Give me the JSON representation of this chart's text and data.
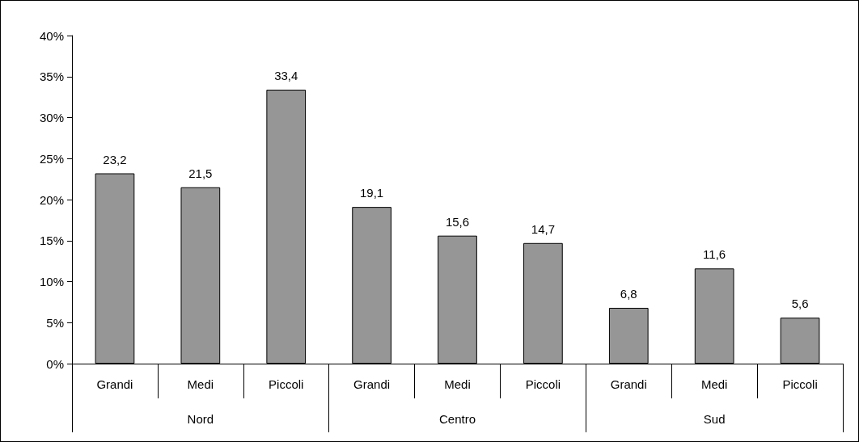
{
  "chart_data": {
    "type": "bar",
    "categories": [
      "Grandi",
      "Medi",
      "Piccoli",
      "Grandi",
      "Medi",
      "Piccoli",
      "Grandi",
      "Medi",
      "Piccoli"
    ],
    "values": [
      23.2,
      21.5,
      33.4,
      19.1,
      15.6,
      14.7,
      6.8,
      11.6,
      5.6
    ],
    "value_labels": [
      "23,2",
      "21,5",
      "33,4",
      "19,1",
      "15,6",
      "14,7",
      "6,8",
      "11,6",
      "5,6"
    ],
    "color": "#969696",
    "ylim": [
      0,
      40
    ],
    "yticks": [
      {
        "value": 0,
        "label": "0%"
      },
      {
        "value": 5,
        "label": "5%"
      },
      {
        "value": 10,
        "label": "10%"
      },
      {
        "value": 15,
        "label": "15%"
      },
      {
        "value": 20,
        "label": "20%"
      },
      {
        "value": 25,
        "label": "25%"
      },
      {
        "value": 30,
        "label": "30%"
      },
      {
        "value": 35,
        "label": "35%"
      },
      {
        "value": 40,
        "label": "40%"
      }
    ],
    "annotations": [
      "Nord",
      "Centro",
      "Sud"
    ],
    "grid": false
  }
}
